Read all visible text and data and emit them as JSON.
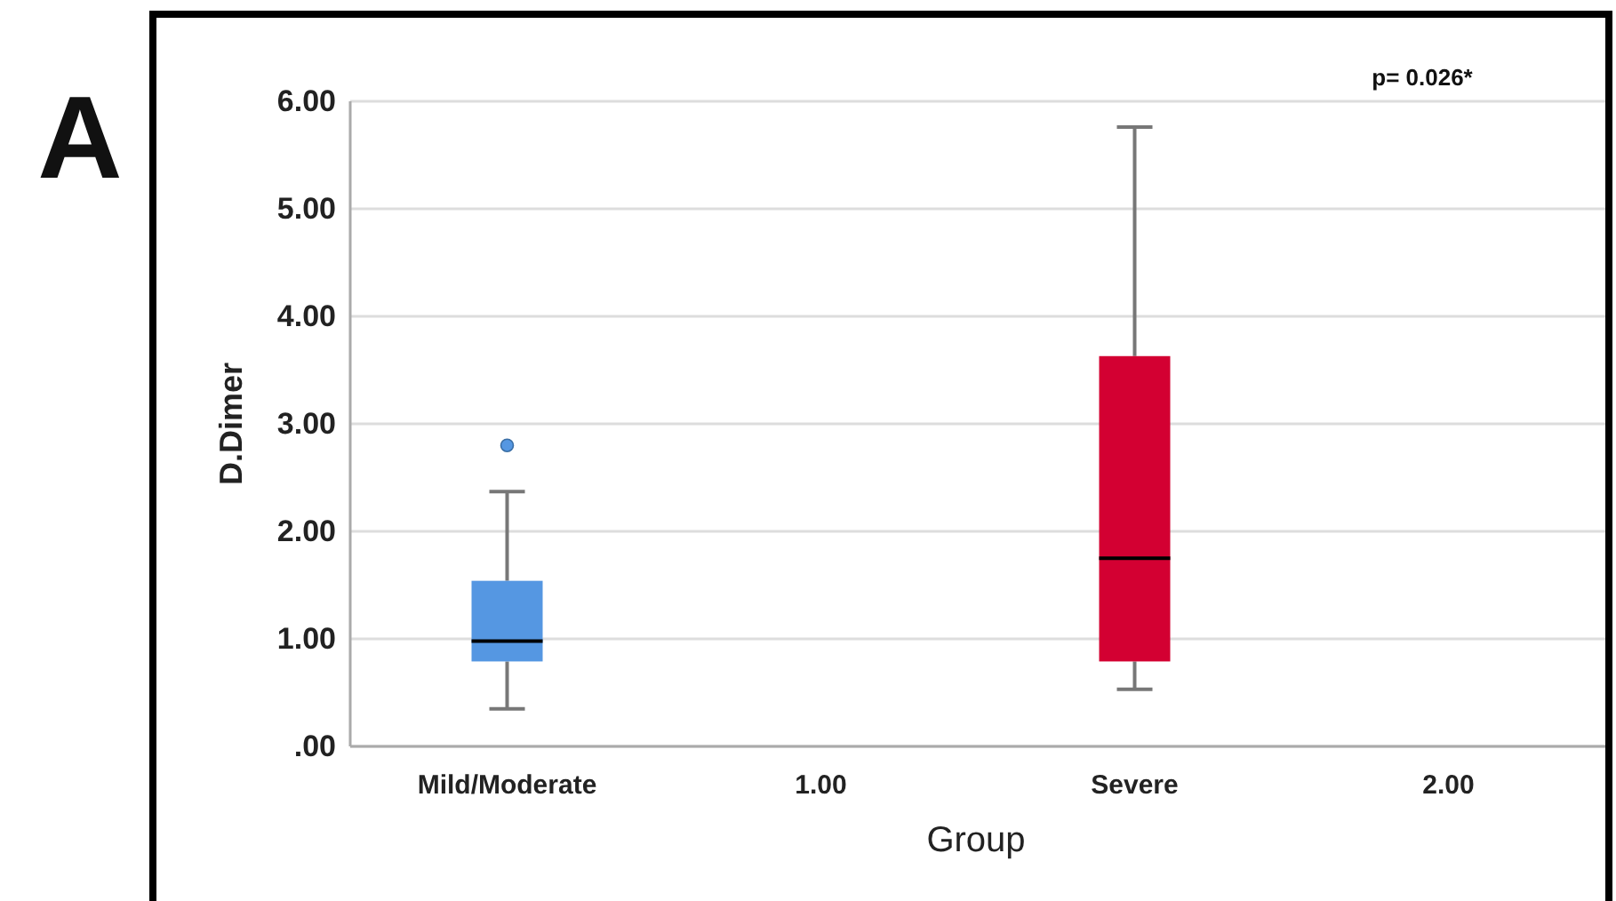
{
  "chart_data": {
    "type": "box",
    "xlabel": "Group",
    "ylabel": "D.Dimer",
    "categories": [
      "Mild/Moderate",
      "1.00",
      "Severe",
      "2.00"
    ],
    "boxes": [
      {
        "low": 0.35,
        "q1": 0.79,
        "median": 0.98,
        "q3": 1.54,
        "high": 2.37,
        "outliers": [
          2.8
        ]
      },
      null,
      {
        "low": 0.53,
        "q1": 0.79,
        "median": 1.75,
        "q3": 3.63,
        "high": 5.76
      },
      null
    ],
    "colors": [
      "#5597e2",
      null,
      "#d30032",
      null
    ],
    "ylim": [
      0,
      6
    ],
    "yticks": [
      {
        "value": 0,
        "label": ".00"
      },
      {
        "value": 1,
        "label": "1.00"
      },
      {
        "value": 2,
        "label": "2.00"
      },
      {
        "value": 3,
        "label": "3.00"
      },
      {
        "value": 4,
        "label": "4.00"
      },
      {
        "value": 5,
        "label": "5.00"
      },
      {
        "value": 6,
        "label": "6.00"
      }
    ],
    "grid": "y",
    "annotations": [
      "p= 0.026*",
      "A"
    ]
  }
}
